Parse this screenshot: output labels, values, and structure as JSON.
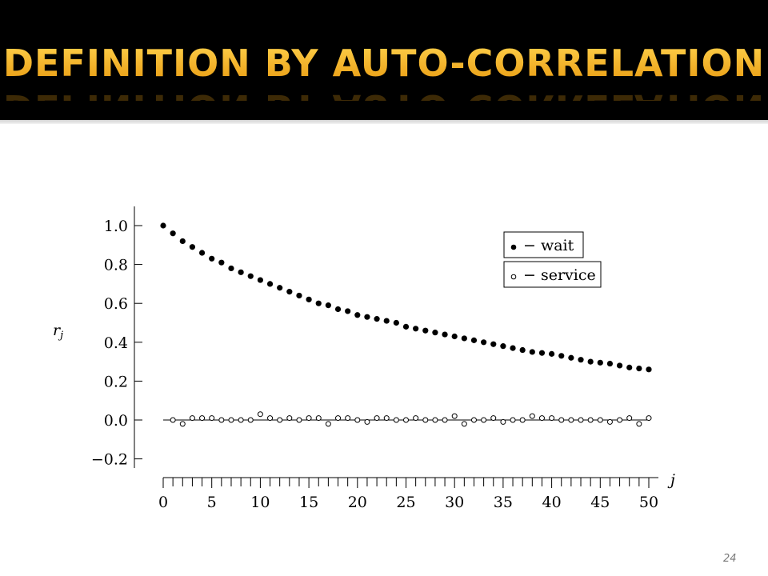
{
  "slide": {
    "title": "Definition by Auto-Correlation",
    "page_number": "24"
  },
  "colors": {
    "header_bg": "#000000",
    "title": "#f4a81a",
    "points": "#000000"
  },
  "chart_data": {
    "type": "scatter",
    "xlabel": "j",
    "ylabel": "r_j",
    "xlim": [
      0,
      50
    ],
    "ylim": [
      -0.2,
      1.1
    ],
    "x_ticks": [
      0,
      5,
      10,
      15,
      20,
      25,
      30,
      35,
      40,
      45,
      50
    ],
    "y_ticks": [
      1.0,
      0.8,
      0.6,
      0.4,
      0.2,
      0.0,
      -0.2
    ],
    "y_tick_labels": [
      "1.0",
      "0.8",
      "0.6",
      "0.4",
      "0.2",
      "0.0",
      "−0.2"
    ],
    "legend_position": "top-right",
    "x": [
      0,
      1,
      2,
      3,
      4,
      5,
      6,
      7,
      8,
      9,
      10,
      11,
      12,
      13,
      14,
      15,
      16,
      17,
      18,
      19,
      20,
      21,
      22,
      23,
      24,
      25,
      26,
      27,
      28,
      29,
      30,
      31,
      32,
      33,
      34,
      35,
      36,
      37,
      38,
      39,
      40,
      41,
      42,
      43,
      44,
      45,
      46,
      47,
      48,
      49,
      50
    ],
    "series": [
      {
        "name": "wait",
        "legend": "− wait",
        "marker": "filled-circle",
        "values": [
          1.0,
          0.96,
          0.92,
          0.89,
          0.86,
          0.83,
          0.81,
          0.78,
          0.76,
          0.74,
          0.72,
          0.7,
          0.68,
          0.66,
          0.64,
          0.62,
          0.6,
          0.59,
          0.57,
          0.56,
          0.54,
          0.53,
          0.52,
          0.51,
          0.5,
          0.48,
          0.47,
          0.46,
          0.45,
          0.44,
          0.43,
          0.42,
          0.41,
          0.4,
          0.39,
          0.38,
          0.37,
          0.36,
          0.35,
          0.345,
          0.34,
          0.33,
          0.32,
          0.31,
          0.3,
          0.295,
          0.29,
          0.28,
          0.27,
          0.265,
          0.26
        ]
      },
      {
        "name": "service",
        "legend": "− service",
        "marker": "open-circle",
        "values": [
          null,
          0.0,
          -0.02,
          0.01,
          0.01,
          0.01,
          0.0,
          0.0,
          0.0,
          0.0,
          0.03,
          0.01,
          0.0,
          0.01,
          0.0,
          0.01,
          0.01,
          -0.02,
          0.01,
          0.01,
          0.0,
          -0.01,
          0.01,
          0.01,
          0.0,
          0.0,
          0.01,
          0.0,
          0.0,
          0.0,
          0.02,
          -0.02,
          0.0,
          0.0,
          0.01,
          -0.01,
          0.0,
          0.0,
          0.02,
          0.01,
          0.01,
          0.0,
          0.0,
          0.0,
          0.0,
          0.0,
          -0.01,
          0.0,
          0.01,
          -0.02,
          0.01
        ]
      }
    ]
  }
}
